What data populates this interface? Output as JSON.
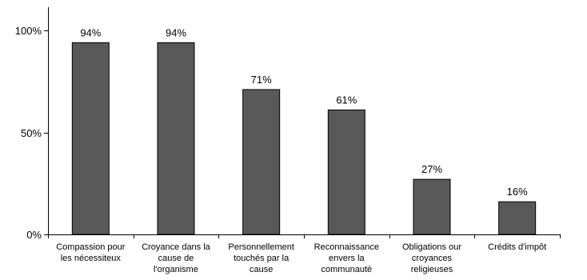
{
  "chart_data": {
    "type": "bar",
    "categories": [
      [
        "Compassion pour",
        "les nécessiteux"
      ],
      [
        "Croyance dans la",
        "cause de",
        "l'organisme"
      ],
      [
        "Personnellement",
        "touchés par la",
        "cause"
      ],
      [
        "Reconnaissance",
        "envers la",
        "communauté"
      ],
      [
        "Obligations our",
        "croyances",
        "religieuses"
      ],
      [
        "Crédits d'impôt"
      ]
    ],
    "values": [
      94,
      94,
      71,
      61,
      27,
      16
    ],
    "data_labels": [
      "94%",
      "94%",
      "71%",
      "61%",
      "27%",
      "16%"
    ],
    "ylim": [
      0,
      100
    ],
    "yticks": [
      {
        "value": 0,
        "label": "0%"
      },
      {
        "value": 50,
        "label": "50%"
      },
      {
        "value": 100,
        "label": "100%"
      }
    ],
    "title": "",
    "xlabel": "",
    "ylabel": "",
    "legend": "none",
    "grid": false,
    "bar_color": "#595959",
    "bar_border_color": "#000000"
  }
}
